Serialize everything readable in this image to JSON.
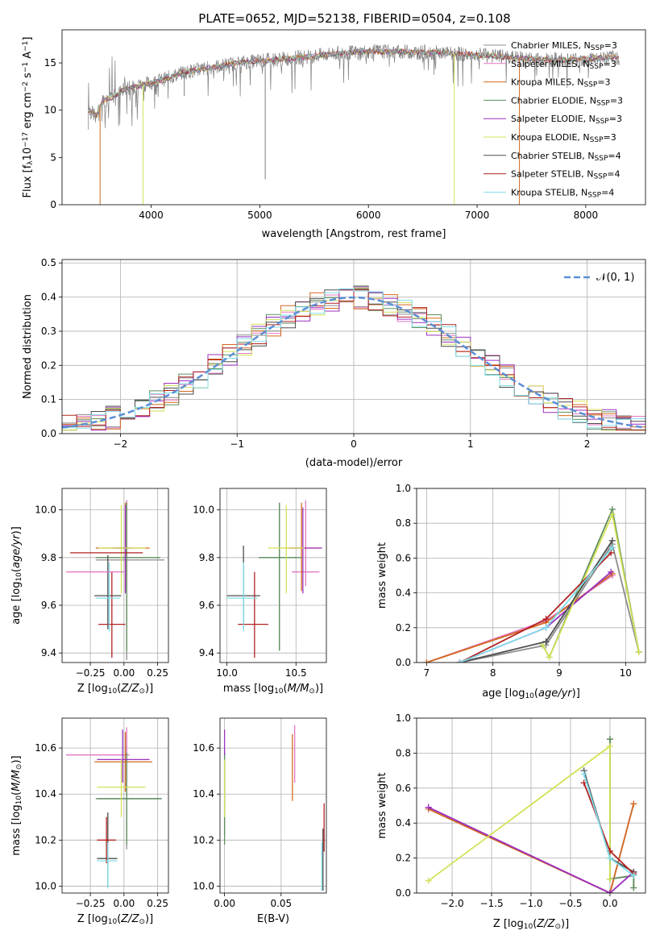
{
  "figure": {
    "title": "PLATE=0652, MJD=52138, FIBERID=0504, z=0.108"
  },
  "series_style": [
    {
      "name": "Chabrier MILES",
      "nssp": "3",
      "color": "#8c8c8c"
    },
    {
      "name": "Salpeter MILES",
      "nssp": "3",
      "color": "#e377c2"
    },
    {
      "name": "Kroupa MILES",
      "nssp": "3",
      "color": "#d2691e"
    },
    {
      "name": "Chabrier ELODIE",
      "nssp": "3",
      "color": "#5f8f5f"
    },
    {
      "name": "Salpeter ELODIE",
      "nssp": "3",
      "color": "#9b30c0"
    },
    {
      "name": "Kroupa ELODIE",
      "nssp": "3",
      "color": "#d4e157"
    },
    {
      "name": "Chabrier STELIB",
      "nssp": "4",
      "color": "#4d4d4d"
    },
    {
      "name": "Salpeter STELIB",
      "nssp": "4",
      "color": "#b22222"
    },
    {
      "name": "Kroupa STELIB",
      "nssp": "4",
      "color": "#80deea"
    }
  ],
  "chart_data": [
    {
      "id": "spectrum",
      "type": "line",
      "xlabel": "wavelength [Angstrom, rest frame]",
      "ylabel_main": "Flux [f",
      "ylabel_sub": "λ",
      "ylabel_mid": "10",
      "ylabel_sup": "−17",
      "ylabel_rest": " erg cm",
      "ylabel_sup2": "−2",
      "ylabel_mid2": " s",
      "ylabel_sup3": "−1",
      "ylabel_end": " A",
      "ylabel_sup4": "−1",
      "ylabel_close": "]",
      "xlim": [
        3180,
        8550
      ],
      "ylim": [
        0,
        18.5
      ],
      "xticks": [
        "4000",
        "5000",
        "6000",
        "7000",
        "8000"
      ],
      "xtick_values": [
        4000,
        5000,
        6000,
        7000,
        8000
      ],
      "yticks": [
        "0",
        "5",
        "10",
        "15"
      ],
      "ytick_values": [
        0,
        5,
        10,
        15
      ],
      "legend_label_prefix": "N",
      "legend_label_sub": "SSP",
      "legend_label_eq": "=",
      "legend_position": "upper right",
      "continuum": [
        [
          3420,
          10
        ],
        [
          3500,
          9.4
        ],
        [
          3550,
          11.0
        ],
        [
          3650,
          11.4
        ],
        [
          3750,
          12.2
        ],
        [
          3900,
          12.6
        ],
        [
          4100,
          13.2
        ],
        [
          4300,
          14.0
        ],
        [
          4500,
          14.4
        ],
        [
          4800,
          15.0
        ],
        [
          5100,
          15.3
        ],
        [
          5400,
          15.6
        ],
        [
          5700,
          16.0
        ],
        [
          6000,
          16.2
        ],
        [
          6300,
          16.2
        ],
        [
          6600,
          16.1
        ],
        [
          6900,
          15.9
        ],
        [
          7200,
          15.7
        ],
        [
          7500,
          15.4
        ],
        [
          7800,
          15.3
        ],
        [
          8100,
          15.5
        ],
        [
          8300,
          15.6
        ]
      ],
      "absorption_lines": [
        [
          3530,
          0
        ],
        [
          3925,
          0
        ],
        [
          4305,
          11.5
        ],
        [
          5050,
          2.7
        ],
        [
          6790,
          0
        ],
        [
          7390,
          0
        ]
      ]
    },
    {
      "id": "residuals",
      "type": "line",
      "xlabel": "(data-model)/error",
      "ylabel": "Normed distribution",
      "xlim": [
        -2.5,
        2.5
      ],
      "ylim": [
        0,
        0.51
      ],
      "xticks": [
        "−2",
        "−1",
        "0",
        "1",
        "2"
      ],
      "xtick_values": [
        -2,
        -1,
        0,
        1,
        2
      ],
      "yticks": [
        "0.0",
        "0.1",
        "0.2",
        "0.3",
        "0.4",
        "0.5"
      ],
      "ytick_values": [
        0,
        0.1,
        0.2,
        0.3,
        0.4,
        0.5
      ],
      "grid": true,
      "gauss_label": "𝒩(0, 1)",
      "gauss_color": "#5b8fd6",
      "bin_width": 0.125,
      "gauss_amplitude": 0.399,
      "legend_position": "upper right"
    },
    {
      "id": "age_vs_Z",
      "type": "scatter",
      "xlabel": "Z [log",
      "xlabel_sub": "10",
      "xlabel_rest": "(Z/Z",
      "xlabel_sub2": "⊙",
      "xlabel_end": ")]",
      "ylabel": "age  [log",
      "ylabel_sub": "10",
      "ylabel_rest": "(age/yr)]",
      "xlim": [
        -0.46,
        0.33
      ],
      "ylim": [
        9.36,
        10.09
      ],
      "xticks": [
        "−0.25",
        "0.00",
        "0.25"
      ],
      "xtick_values": [
        -0.25,
        0,
        0.25
      ],
      "yticks": [
        "9.4",
        "9.6",
        "9.8",
        "10.0"
      ],
      "ytick_values": [
        9.4,
        9.6,
        9.8,
        10.0
      ],
      "grid": true,
      "points": [
        {
          "s": 0,
          "x": 0.02,
          "y": 9.79,
          "xerr": [
            0.23,
            0.28
          ],
          "yerr": [
            0.42,
            0.25
          ]
        },
        {
          "s": 1,
          "x": 0.02,
          "y": 9.84,
          "xerr": [
            0.09,
            0.0
          ],
          "yerr": [
            0.14,
            0.2
          ]
        },
        {
          "s": 2,
          "x": 0.01,
          "y": 9.84,
          "xerr": [
            0.22,
            0.18
          ],
          "yerr": [
            0.18,
            0.19
          ]
        },
        {
          "s": 3,
          "x": 0.02,
          "y": 9.8,
          "xerr": [
            0.23,
            0.25
          ],
          "yerr": [
            0.39,
            0.23
          ]
        },
        {
          "s": 4,
          "x": 0.01,
          "y": 9.84,
          "xerr": [
            0.1,
            0.05
          ],
          "yerr": [
            0.19,
            0.18
          ]
        },
        {
          "s": 5,
          "x": -0.02,
          "y": 9.84,
          "xerr": [
            0.17,
            0.18
          ],
          "yerr": [
            0.19,
            0.18
          ]
        },
        {
          "s": 6,
          "x": -0.12,
          "y": 9.64,
          "xerr": [
            0.1,
            0.1
          ],
          "yerr": [
            0.14,
            0.17
          ]
        },
        {
          "s": 7,
          "x": -0.09,
          "y": 9.52,
          "xerr": [
            0.1,
            0.1
          ],
          "yerr": [
            0.14,
            0.22
          ]
        },
        {
          "s": 8,
          "x": -0.11,
          "y": 9.63,
          "xerr": [
            0.1,
            0.08
          ],
          "yerr": [
            0.14,
            0.15
          ]
        },
        {
          "s": 1,
          "x": -0.13,
          "y": 9.74,
          "xerr": [
            0.3,
            0.13
          ],
          "yerr": [
            0.0,
            0.0
          ]
        },
        {
          "s": 7,
          "x": -0.13,
          "y": 9.82,
          "xerr": [
            0.27,
            0.27
          ],
          "yerr": [
            0,
            0
          ]
        }
      ]
    },
    {
      "id": "age_vs_mass",
      "type": "scatter",
      "xlabel": "mass [log",
      "xlabel_sub": "10",
      "xlabel_rest": "(M/M",
      "xlabel_sub2": "⊙",
      "xlabel_end": ")]",
      "xlim": [
        9.95,
        10.72
      ],
      "ylim": [
        9.36,
        10.09
      ],
      "xticks": [
        "10.0",
        "10.5"
      ],
      "xtick_values": [
        10.0,
        10.5
      ],
      "yticks": [
        "9.4",
        "9.6",
        "9.8",
        "10.0"
      ],
      "ytick_values": [
        9.4,
        9.6,
        9.8,
        10.0
      ],
      "grid": true,
      "points": [
        {
          "s": 0,
          "x": 10.38,
          "y": 9.8,
          "xerr": [
            0.12,
            0.12
          ],
          "yerr": [
            0.39,
            0.23
          ]
        },
        {
          "s": 1,
          "x": 10.57,
          "y": 9.74,
          "xerr": [
            0.1,
            0.1
          ],
          "yerr": [
            0.06,
            0.3
          ]
        },
        {
          "s": 2,
          "x": 10.54,
          "y": 9.84,
          "xerr": [
            0.13,
            0.13
          ],
          "yerr": [
            0.18,
            0.19
          ]
        },
        {
          "s": 3,
          "x": 10.38,
          "y": 9.8,
          "xerr": [
            0.15,
            0.16
          ],
          "yerr": [
            0.39,
            0.23
          ]
        },
        {
          "s": 4,
          "x": 10.55,
          "y": 9.84,
          "xerr": [
            0.1,
            0.14
          ],
          "yerr": [
            0.19,
            0.17
          ]
        },
        {
          "s": 5,
          "x": 10.43,
          "y": 9.84,
          "xerr": [
            0.13,
            0.13
          ],
          "yerr": [
            0.19,
            0.18
          ]
        },
        {
          "s": 6,
          "x": 10.12,
          "y": 9.64,
          "xerr": [
            0.12,
            0.12
          ],
          "yerr": [
            0.14,
            0.21
          ]
        },
        {
          "s": 7,
          "x": 10.2,
          "y": 9.52,
          "xerr": [
            0.12,
            0.1
          ],
          "yerr": [
            0.14,
            0.22
          ]
        },
        {
          "s": 8,
          "x": 10.12,
          "y": 9.63,
          "xerr": [
            0.12,
            0.1
          ],
          "yerr": [
            0.14,
            0.15
          ]
        }
      ]
    },
    {
      "id": "massweight_vs_age",
      "type": "line",
      "xlabel": "age  [log",
      "xlabel_sub": "10",
      "xlabel_rest": "(age/yr)]",
      "ylabel": "mass weight",
      "xlim": [
        6.85,
        10.3
      ],
      "ylim": [
        0,
        1.0
      ],
      "xticks": [
        "7",
        "8",
        "9",
        "10"
      ],
      "xtick_values": [
        7,
        8,
        9,
        10
      ],
      "yticks": [
        "0.0",
        "0.2",
        "0.4",
        "0.6",
        "0.8",
        "1.0"
      ],
      "ytick_values": [
        0,
        0.2,
        0.4,
        0.6,
        0.8,
        1.0
      ],
      "grid": true,
      "series": [
        {
          "s": 0,
          "x": [
            7.5,
            8.8,
            9.8,
            10.2
          ],
          "y": [
            0.0,
            0.1,
            0.68,
            0.06
          ]
        },
        {
          "s": 1,
          "x": [
            7.0,
            8.8,
            9.8
          ],
          "y": [
            0.0,
            0.24,
            0.5
          ]
        },
        {
          "s": 2,
          "x": [
            7.0,
            8.8,
            9.8
          ],
          "y": [
            0.0,
            0.23,
            0.51
          ]
        },
        {
          "s": 3,
          "x": [
            8.75,
            8.85,
            9.8,
            10.2
          ],
          "y": [
            0.1,
            0.03,
            0.88,
            0.06
          ]
        },
        {
          "s": 4,
          "x": [
            7.5,
            8.8,
            9.78
          ],
          "y": [
            0.0,
            0.2,
            0.52
          ]
        },
        {
          "s": 5,
          "x": [
            8.75,
            8.85,
            9.8,
            10.2
          ],
          "y": [
            0.1,
            0.03,
            0.85,
            0.06
          ]
        },
        {
          "s": 6,
          "x": [
            7.5,
            8.8,
            9.8
          ],
          "y": [
            0.0,
            0.12,
            0.7
          ]
        },
        {
          "s": 7,
          "x": [
            7.5,
            8.8,
            9.78
          ],
          "y": [
            0.0,
            0.25,
            0.63
          ]
        },
        {
          "s": 8,
          "x": [
            7.5,
            8.8,
            9.8
          ],
          "y": [
            0.0,
            0.2,
            0.66
          ]
        }
      ]
    },
    {
      "id": "mass_vs_Z",
      "type": "scatter",
      "xlabel": "Z [log",
      "xlabel_sub": "10",
      "xlabel_rest": "(Z/Z",
      "xlabel_sub2": "⊙",
      "xlabel_end": ")]",
      "ylabel": "mass [log",
      "ylabel_sub": "10",
      "ylabel_rest": "(M/M",
      "ylabel_sub2": "⊙",
      "ylabel_end": ")]",
      "xlim": [
        -0.46,
        0.33
      ],
      "ylim": [
        9.97,
        10.73
      ],
      "xticks": [
        "−0.25",
        "0.00",
        "0.25"
      ],
      "xtick_values": [
        -0.25,
        0,
        0.25
      ],
      "yticks": [
        "10.0",
        "10.2",
        "10.4",
        "10.6"
      ],
      "ytick_values": [
        10.0,
        10.2,
        10.4,
        10.6
      ],
      "grid": true,
      "points": [
        {
          "s": 0,
          "x": 0.02,
          "y": 10.38,
          "xerr": [
            0.23,
            0.26
          ],
          "yerr": [
            0.22,
            0.28
          ]
        },
        {
          "s": 1,
          "x": 0.02,
          "y": 10.57,
          "xerr": [
            0.45,
            0.02
          ],
          "yerr": [
            0.1,
            0.12
          ]
        },
        {
          "s": 2,
          "x": 0.01,
          "y": 10.54,
          "xerr": [
            0.23,
            0.2
          ],
          "yerr": [
            0.13,
            0.13
          ]
        },
        {
          "s": 3,
          "x": 0.02,
          "y": 10.38,
          "xerr": [
            0.22,
            0.26
          ],
          "yerr": [
            0.2,
            0.2
          ]
        },
        {
          "s": 4,
          "x": -0.01,
          "y": 10.55,
          "xerr": [
            0.19,
            0.2
          ],
          "yerr": [
            0.1,
            0.13
          ]
        },
        {
          "s": 5,
          "x": -0.02,
          "y": 10.43,
          "xerr": [
            0.18,
            0.18
          ],
          "yerr": [
            0.13,
            0.12
          ]
        },
        {
          "s": 6,
          "x": -0.12,
          "y": 10.12,
          "xerr": [
            0.08,
            0.07
          ],
          "yerr": [
            0.12,
            0.2
          ]
        },
        {
          "s": 7,
          "x": -0.13,
          "y": 10.2,
          "xerr": [
            0.07,
            0.07
          ],
          "yerr": [
            0.1,
            0.1
          ]
        },
        {
          "s": 8,
          "x": -0.12,
          "y": 10.11,
          "xerr": [
            0.08,
            0.07
          ],
          "yerr": [
            0.12,
            0.08
          ]
        }
      ]
    },
    {
      "id": "mass_vs_ebv",
      "type": "scatter",
      "xlabel": "E(B-V)",
      "xlim": [
        -0.004,
        0.09
      ],
      "ylim": [
        9.97,
        10.73
      ],
      "xticks": [
        "0.00",
        "0.05"
      ],
      "xtick_values": [
        0,
        0.05
      ],
      "yticks": [
        "10.0",
        "10.2",
        "10.4",
        "10.6"
      ],
      "ytick_values": [
        10.0,
        10.2,
        10.4,
        10.6
      ],
      "grid": true,
      "points": [
        {
          "s": 0,
          "x": 0.0,
          "y": 10.38,
          "yerr": [
            0.16,
            0.21
          ]
        },
        {
          "s": 1,
          "x": 0.062,
          "y": 10.57,
          "yerr": [
            0.12,
            0.13
          ]
        },
        {
          "s": 2,
          "x": 0.06,
          "y": 10.54,
          "yerr": [
            0.17,
            0.12
          ]
        },
        {
          "s": 3,
          "x": 0.0,
          "y": 10.38,
          "yerr": [
            0.2,
            0.2
          ]
        },
        {
          "s": 4,
          "x": 0.0,
          "y": 10.6,
          "yerr": [
            0.03,
            0.08
          ]
        },
        {
          "s": 5,
          "x": 0.0,
          "y": 10.43,
          "yerr": [
            0.13,
            0.12
          ]
        },
        {
          "s": 6,
          "x": 0.087,
          "y": 10.12,
          "yerr": [
            0.14,
            0.13
          ]
        },
        {
          "s": 7,
          "x": 0.088,
          "y": 10.27,
          "yerr": [
            0.12,
            0.09
          ]
        },
        {
          "s": 8,
          "x": 0.086,
          "y": 10.11,
          "yerr": [
            0.13,
            0.08
          ]
        }
      ]
    },
    {
      "id": "massweight_vs_Z",
      "type": "line",
      "xlabel": "Z [log",
      "xlabel_sub": "10",
      "xlabel_rest": "(Z/Z",
      "xlabel_sub2": "⊙",
      "xlabel_end": ")]",
      "ylabel": "mass weight",
      "xlim": [
        -2.45,
        0.45
      ],
      "ylim": [
        0,
        1.0
      ],
      "xticks": [
        "−2.0",
        "−1.5",
        "−1.0",
        "−0.5",
        "0.0"
      ],
      "xtick_values": [
        -2,
        -1.5,
        -1,
        -0.5,
        0
      ],
      "yticks": [
        "0.0",
        "0.2",
        "0.4",
        "0.6",
        "0.8",
        "1.0"
      ],
      "ytick_values": [
        0,
        0.2,
        0.4,
        0.6,
        0.8,
        1.0
      ],
      "grid": true,
      "series": [
        {
          "s": 0,
          "x": [
            0.0,
            0.0,
            0.3,
            0.3
          ],
          "y": [
            0.88,
            0.08,
            0.1,
            0.03
          ]
        },
        {
          "s": 1,
          "x": [
            -2.3,
            0.0,
            0.3
          ],
          "y": [
            0.49,
            0.0,
            0.51
          ]
        },
        {
          "s": 2,
          "x": [
            -2.3,
            0.0,
            0.3
          ],
          "y": [
            0.48,
            0.0,
            0.51
          ]
        },
        {
          "s": 3,
          "x": [
            0.0,
            0.0,
            0.3,
            0.3
          ],
          "y": [
            0.88,
            0.08,
            0.1,
            0.03
          ]
        },
        {
          "s": 4,
          "x": [
            -2.3,
            0.0,
            0.3
          ],
          "y": [
            0.49,
            0.0,
            0.12
          ]
        },
        {
          "s": 5,
          "x": [
            -2.3,
            0.0,
            0.0
          ],
          "y": [
            0.07,
            0.84,
            0.08
          ]
        },
        {
          "s": 6,
          "x": [
            -0.33,
            0.0,
            0.3
          ],
          "y": [
            0.7,
            0.2,
            0.12
          ]
        },
        {
          "s": 7,
          "x": [
            -0.33,
            0.0,
            0.3
          ],
          "y": [
            0.63,
            0.24,
            0.11
          ]
        },
        {
          "s": 8,
          "x": [
            -0.33,
            0.0,
            0.3
          ],
          "y": [
            0.68,
            0.2,
            0.1
          ]
        }
      ]
    }
  ]
}
